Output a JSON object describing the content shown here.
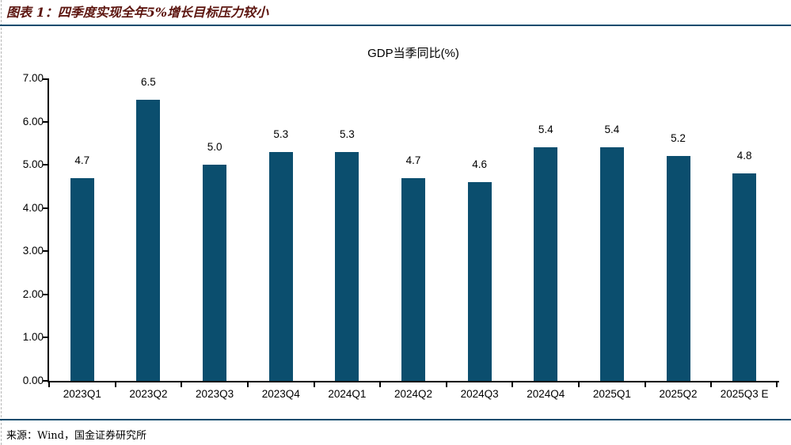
{
  "header": {
    "title": "图表 1：四季度实现全年5%增长目标压力较小"
  },
  "chart_data": {
    "type": "bar",
    "title": "GDP当季同比(%)",
    "categories": [
      "2023Q1",
      "2023Q2",
      "2023Q3",
      "2023Q4",
      "2024Q1",
      "2024Q2",
      "2024Q3",
      "2024Q4",
      "2025Q1",
      "2025Q2",
      "2025Q3 E"
    ],
    "values": [
      4.7,
      6.5,
      5.0,
      5.3,
      5.3,
      4.7,
      4.6,
      5.4,
      5.4,
      5.2,
      4.8
    ],
    "data_labels": [
      "4.7",
      "6.5",
      "5.0",
      "5.3",
      "5.3",
      "4.7",
      "4.6",
      "5.4",
      "5.4",
      "5.2",
      "4.8"
    ],
    "ylim": [
      0,
      7
    ],
    "ytick_step": 1,
    "ytick_labels": [
      "0.00",
      "1.00",
      "2.00",
      "3.00",
      "4.00",
      "5.00",
      "6.00",
      "7.00"
    ],
    "grid": false,
    "legend": null,
    "bar_color": "#0b4e6e"
  },
  "footer": {
    "source": "来源：Wind，国金证券研究所"
  },
  "colors": {
    "bar": "#0b4e6e",
    "rule": "#0e4c6e",
    "header_title": "#5c150f",
    "axis": "#000000"
  }
}
